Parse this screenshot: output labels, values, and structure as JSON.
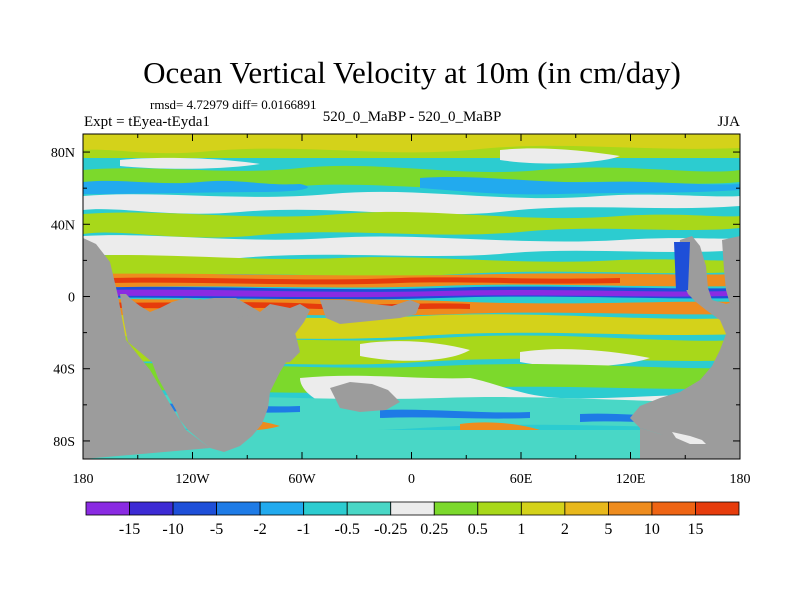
{
  "chart_data": {
    "type": "heatmap",
    "title": "Ocean Vertical Velocity at 10m (in cm/day)",
    "stats": "rmsd= 4.72979 diff= 0.0166891",
    "experiment": "Expt = tEyea-tEyda1",
    "case_label": "520_0_MaBP - 520_0_MaBP",
    "season": "JJA",
    "units": "cm/day",
    "xlim": [
      180,
      540
    ],
    "ylim": [
      -90,
      90
    ],
    "x_ticks": [
      {
        "value": 180,
        "label": "180"
      },
      {
        "value": 240,
        "label": "120W"
      },
      {
        "value": 300,
        "label": "60W"
      },
      {
        "value": 360,
        "label": "0"
      },
      {
        "value": 420,
        "label": "60E"
      },
      {
        "value": 480,
        "label": "120E"
      },
      {
        "value": 540,
        "label": "180"
      }
    ],
    "y_ticks": [
      {
        "value": 80,
        "label": "80N"
      },
      {
        "value": 40,
        "label": "40N"
      },
      {
        "value": 0,
        "label": "0"
      },
      {
        "value": -40,
        "label": "40S"
      },
      {
        "value": -80,
        "label": "80S"
      }
    ],
    "colorbar": {
      "colors": [
        "#8a2be2",
        "#3d2bd4",
        "#1e4fd8",
        "#1e7be6",
        "#22aaee",
        "#2cccd0",
        "#49d7c6",
        "#ececec",
        "#7cd92c",
        "#a8d81a",
        "#d4d21a",
        "#e8b81c",
        "#ee8c1e",
        "#ee6414",
        "#e63c0c"
      ],
      "boundary_labels": [
        "-15",
        "-10",
        "-5",
        "-2",
        "-1",
        "-0.5",
        "-0.25",
        "0.25",
        "0.5",
        "1",
        "2",
        "5",
        "10",
        "15"
      ]
    },
    "field_summary": [
      {
        "band": "equatorial upwelling strip (~0)",
        "range_cm_per_day": "-15 to -10"
      },
      {
        "band": "flanking equatorial bands (~5N, ~5S)",
        "range_cm_per_day": "5 to 15"
      },
      {
        "band": "northern mid-latitudes",
        "range_cm_per_day": "-1 to 1"
      },
      {
        "band": "southern ocean",
        "range_cm_per_day": "-2 to 2"
      },
      {
        "band": "high northern latitudes (>70N)",
        "range_cm_per_day": "0.5 to 2"
      }
    ],
    "land_color": "#9c9c9c"
  }
}
